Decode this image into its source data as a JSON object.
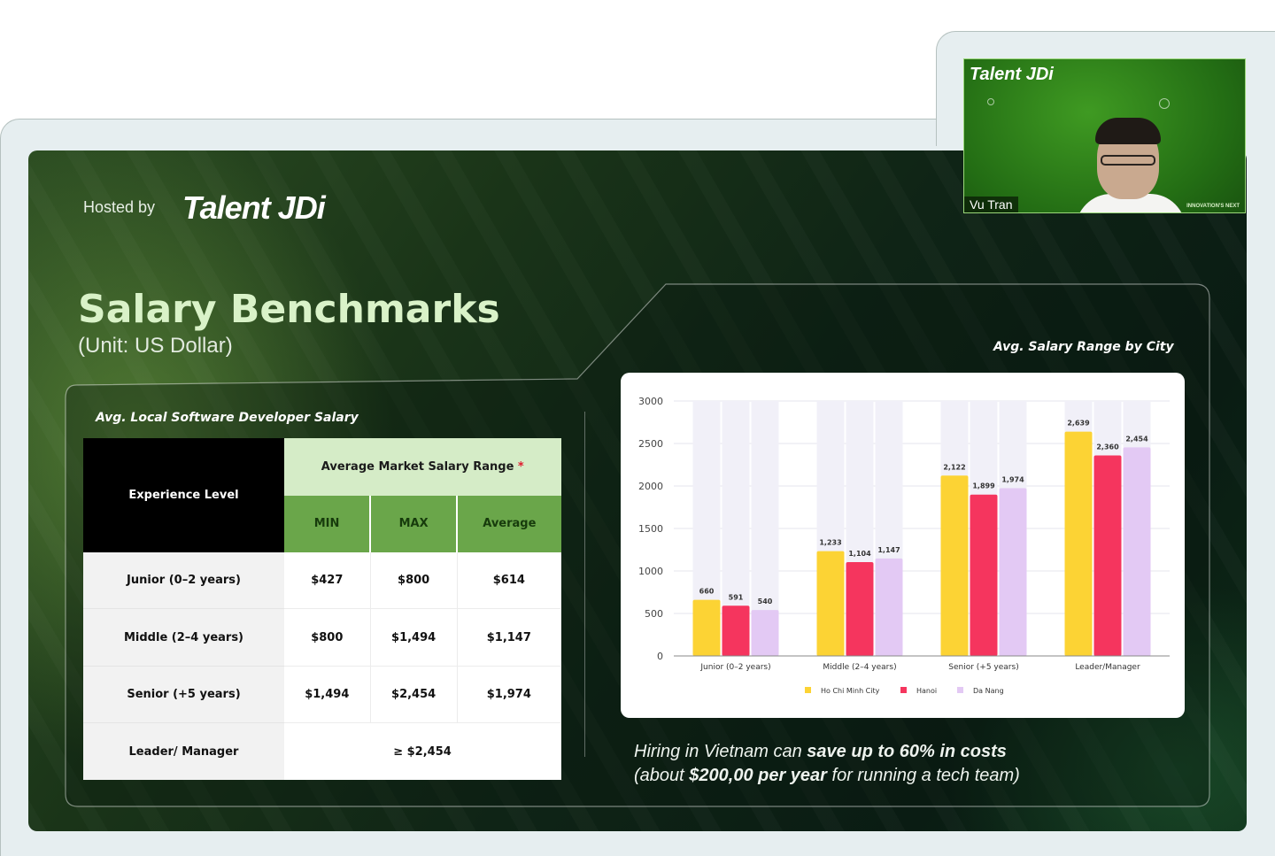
{
  "slide": {
    "hosted_by": "Hosted by",
    "logo_text": "Talent JDi",
    "title": "Salary Benchmarks",
    "subtitle": "(Unit: US Dollar)",
    "table_caption": "Avg. Local Software Developer Salary",
    "chart_caption": "Avg. Salary Range by City",
    "footer": {
      "part1": "Hiring in Vietnam can ",
      "bold1": "save up to 60% in costs",
      "part2": "(about ",
      "bold2": "$200,00 per year",
      "part3": " for running a tech team)"
    }
  },
  "table": {
    "experience_header": "Experience Level",
    "range_header": "Average Market Salary Range",
    "range_marker": "*",
    "columns": [
      "MIN",
      "MAX",
      "Average"
    ],
    "rows": [
      {
        "label": "Junior (0–2 years)",
        "min": "$427",
        "max": "$800",
        "avg": "$614"
      },
      {
        "label": "Middle (2–4 years)",
        "min": "$800",
        "max": "$1,494",
        "avg": "$1,147"
      },
      {
        "label": "Senior (+5 years)",
        "min": "$1,494",
        "max": "$2,454",
        "avg": "$1,974"
      }
    ],
    "leader_row": {
      "label": "Leader/ Manager",
      "value": "≥ $2,454"
    }
  },
  "chart_data": {
    "type": "bar",
    "categories": [
      "Junior (0–2 years)",
      "Middle (2–4 years)",
      "Senior (+5 years)",
      "Leader/Manager"
    ],
    "series": [
      {
        "name": "Ho Chi Minh City",
        "values": [
          660,
          1233,
          2122,
          2639
        ],
        "labels": [
          "660",
          "1,233",
          "2,122",
          "2,639"
        ],
        "color": "#fcd334"
      },
      {
        "name": "Hanoi",
        "values": [
          591,
          1104,
          1899,
          2360
        ],
        "labels": [
          "591",
          "1,104",
          "1,899",
          "2,360"
        ],
        "color": "#f5355e"
      },
      {
        "name": "Da Nang",
        "values": [
          540,
          1147,
          1974,
          2454
        ],
        "labels": [
          "540",
          "1,147",
          "1,974",
          "2,454"
        ],
        "color": "#e3c9f4"
      }
    ],
    "ylim": [
      0,
      3000
    ],
    "yticks": [
      0,
      500,
      1000,
      1500,
      2000,
      2500,
      3000
    ],
    "legend": "bottom",
    "grid": true
  },
  "camera": {
    "logo_text": "Talent JDi",
    "participant_name": "Vu Tran",
    "tagline": "INNOVATION'S NEXT"
  }
}
